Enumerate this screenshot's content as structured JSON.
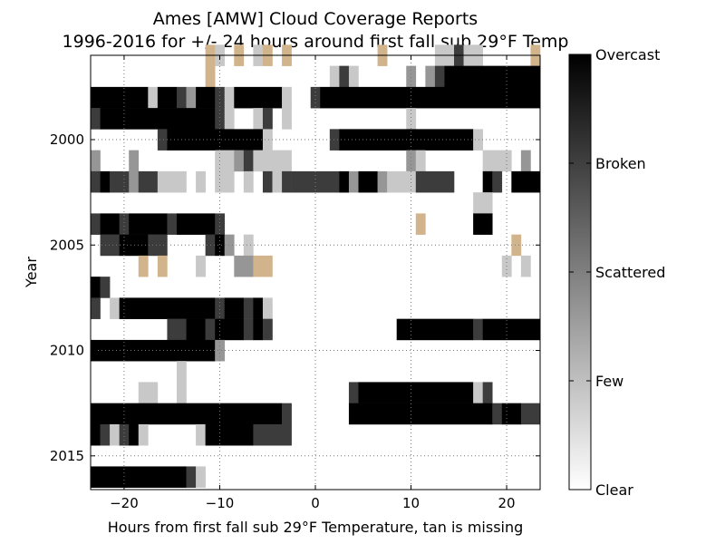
{
  "chart_data": {
    "type": "heatmap",
    "title_line1": "Ames [AMW] Cloud Coverage Reports",
    "title_line2": "1996-2016 for  +/- 24 hours around first fall  sub 29°F Temp",
    "xlabel": "Hours from first fall sub 29°F Temperature, tan is missing",
    "ylabel": "Year",
    "xlim": [
      -23.5,
      23.5
    ],
    "ylim": [
      1996,
      2016.6
    ],
    "x_ticks": [
      -20,
      -10,
      0,
      10,
      20
    ],
    "y_ticks": [
      2000,
      2005,
      2010,
      2015
    ],
    "grid": true,
    "colorbar": {
      "labels": [
        "Clear",
        "Few",
        "Scattered",
        "Broken",
        "Overcast"
      ],
      "values": [
        0,
        1,
        2,
        3,
        4
      ]
    },
    "missing_color": "#D2B48C",
    "level_colors": {
      "0": "#ffffff",
      "1": "#c8c8c8",
      "2": "#969696",
      "3": "#3c3c3c",
      "4": "#000000"
    },
    "rows": [
      {
        "year": 1996,
        "cells": [
          [
            -11,
            -11,
            "M"
          ],
          [
            -10,
            -10,
            1
          ],
          [
            -8,
            -8,
            "M"
          ],
          [
            -6,
            -6,
            1
          ],
          [
            -5,
            -5,
            "M"
          ],
          [
            -3,
            -3,
            "M"
          ],
          [
            7,
            7,
            "M"
          ],
          [
            13,
            14,
            1
          ],
          [
            15,
            15,
            3
          ],
          [
            16,
            17,
            1
          ],
          [
            23,
            23,
            "M"
          ]
        ]
      },
      {
        "year": 1997,
        "cells": [
          [
            -11,
            -11,
            "M"
          ],
          [
            2,
            2,
            1
          ],
          [
            3,
            3,
            3
          ],
          [
            4,
            4,
            1
          ],
          [
            10,
            10,
            2
          ],
          [
            12,
            12,
            2
          ],
          [
            13,
            13,
            3
          ],
          [
            14,
            23,
            4
          ]
        ]
      },
      {
        "year": 1998,
        "cells": [
          [
            -23,
            -18,
            4
          ],
          [
            -17,
            -17,
            1
          ],
          [
            -16,
            -15,
            4
          ],
          [
            -14,
            -14,
            3
          ],
          [
            -13,
            -13,
            2
          ],
          [
            -12,
            -11,
            4
          ],
          [
            -10,
            -10,
            3
          ],
          [
            -9,
            -9,
            1
          ],
          [
            -8,
            -4,
            4
          ],
          [
            -3,
            -3,
            1
          ],
          [
            0,
            0,
            3
          ],
          [
            1,
            23,
            4
          ]
        ]
      },
      {
        "year": 1999,
        "cells": [
          [
            -23,
            -23,
            3
          ],
          [
            -22,
            -11,
            4
          ],
          [
            -10,
            -10,
            3
          ],
          [
            -9,
            -9,
            1
          ],
          [
            -6,
            -6,
            1
          ],
          [
            -5,
            -5,
            3
          ],
          [
            -3,
            -3,
            1
          ],
          [
            10,
            10,
            1
          ]
        ]
      },
      {
        "year": 2000,
        "cells": [
          [
            -16,
            -16,
            3
          ],
          [
            -15,
            -6,
            4
          ],
          [
            -5,
            -5,
            1
          ],
          [
            2,
            2,
            3
          ],
          [
            3,
            16,
            4
          ],
          [
            17,
            17,
            1
          ]
        ]
      },
      {
        "year": 2001,
        "cells": [
          [
            -23,
            -23,
            2
          ],
          [
            -19,
            -19,
            2
          ],
          [
            -10,
            -9,
            1
          ],
          [
            -8,
            -8,
            2
          ],
          [
            -7,
            -7,
            3
          ],
          [
            -6,
            -6,
            1
          ],
          [
            -5,
            -3,
            1
          ],
          [
            10,
            10,
            2
          ],
          [
            11,
            11,
            1
          ],
          [
            18,
            20,
            1
          ],
          [
            22,
            22,
            2
          ]
        ]
      },
      {
        "year": 2002,
        "cells": [
          [
            -23,
            -23,
            3
          ],
          [
            -22,
            -22,
            4
          ],
          [
            -21,
            -20,
            3
          ],
          [
            -19,
            -19,
            2
          ],
          [
            -18,
            -17,
            3
          ],
          [
            -16,
            -14,
            1
          ],
          [
            -12,
            -12,
            1
          ],
          [
            -10,
            -9,
            1
          ],
          [
            -7,
            -7,
            1
          ],
          [
            -5,
            -5,
            3
          ],
          [
            -4,
            -4,
            1
          ],
          [
            -3,
            -3,
            3
          ],
          [
            -2,
            2,
            3
          ],
          [
            3,
            3,
            4
          ],
          [
            4,
            4,
            2
          ],
          [
            5,
            6,
            4
          ],
          [
            7,
            7,
            2
          ],
          [
            8,
            10,
            1
          ],
          [
            11,
            11,
            3
          ],
          [
            12,
            14,
            3
          ],
          [
            18,
            18,
            4
          ],
          [
            19,
            19,
            3
          ],
          [
            21,
            23,
            4
          ]
        ]
      },
      {
        "year": 2003,
        "cells": [
          [
            17,
            18,
            1
          ]
        ]
      },
      {
        "year": 2004,
        "cells": [
          [
            -23,
            -23,
            3
          ],
          [
            -22,
            -21,
            4
          ],
          [
            -20,
            -20,
            3
          ],
          [
            -19,
            -16,
            4
          ],
          [
            -15,
            -15,
            3
          ],
          [
            -14,
            -11,
            4
          ],
          [
            -10,
            -10,
            3
          ],
          [
            11,
            11,
            "M"
          ],
          [
            17,
            18,
            4
          ]
        ]
      },
      {
        "year": 2005,
        "cells": [
          [
            -22,
            -21,
            3
          ],
          [
            -20,
            -20,
            4
          ],
          [
            -19,
            -18,
            4
          ],
          [
            -17,
            -16,
            3
          ],
          [
            -11,
            -11,
            3
          ],
          [
            -10,
            -10,
            4
          ],
          [
            -9,
            -9,
            2
          ],
          [
            -7,
            -7,
            1
          ],
          [
            21,
            21,
            "M"
          ]
        ]
      },
      {
        "year": 2006,
        "cells": [
          [
            -18,
            -18,
            "M"
          ],
          [
            -16,
            -16,
            "M"
          ],
          [
            -12,
            -12,
            1
          ],
          [
            -8,
            -7,
            2
          ],
          [
            -6,
            -5,
            "M"
          ],
          [
            20,
            20,
            1
          ],
          [
            22,
            22,
            1
          ]
        ]
      },
      {
        "year": 2007,
        "cells": [
          [
            -23,
            -23,
            4
          ],
          [
            -22,
            -22,
            3
          ]
        ]
      },
      {
        "year": 2008,
        "cells": [
          [
            -23,
            -23,
            3
          ],
          [
            -21,
            -21,
            1
          ],
          [
            -20,
            -11,
            4
          ],
          [
            -10,
            -10,
            3
          ],
          [
            -9,
            -8,
            4
          ],
          [
            -7,
            -7,
            3
          ],
          [
            -6,
            -6,
            4
          ],
          [
            -5,
            -5,
            1
          ]
        ]
      },
      {
        "year": 2009,
        "cells": [
          [
            -15,
            -14,
            3
          ],
          [
            -13,
            -12,
            4
          ],
          [
            -11,
            -11,
            3
          ],
          [
            -10,
            -8,
            4
          ],
          [
            -7,
            -7,
            3
          ],
          [
            -6,
            -6,
            4
          ],
          [
            -5,
            -5,
            3
          ],
          [
            9,
            16,
            4
          ],
          [
            17,
            17,
            3
          ],
          [
            18,
            23,
            4
          ]
        ]
      },
      {
        "year": 2010,
        "cells": [
          [
            -23,
            -11,
            4
          ],
          [
            -10,
            -10,
            2
          ]
        ]
      },
      {
        "year": 2011,
        "cells": [
          [
            -14,
            -14,
            1
          ]
        ]
      },
      {
        "year": 2012,
        "cells": [
          [
            -18,
            -17,
            1
          ],
          [
            -14,
            -14,
            1
          ],
          [
            4,
            4,
            3
          ],
          [
            5,
            16,
            4
          ],
          [
            17,
            17,
            1
          ],
          [
            18,
            18,
            3
          ]
        ]
      },
      {
        "year": 2013,
        "cells": [
          [
            -23,
            -4,
            4
          ],
          [
            -3,
            -3,
            3
          ],
          [
            4,
            18,
            4
          ],
          [
            19,
            19,
            3
          ],
          [
            20,
            21,
            4
          ],
          [
            22,
            23,
            3
          ]
        ]
      },
      {
        "year": 2014,
        "cells": [
          [
            -23,
            -23,
            4
          ],
          [
            -22,
            -22,
            3
          ],
          [
            -21,
            -21,
            1
          ],
          [
            -20,
            -20,
            3
          ],
          [
            -19,
            -19,
            4
          ],
          [
            -18,
            -18,
            1
          ],
          [
            -12,
            -12,
            1
          ],
          [
            -11,
            -7,
            4
          ],
          [
            -6,
            -3,
            3
          ]
        ]
      },
      {
        "year": 2015,
        "cells": []
      },
      {
        "year": 2016,
        "cells": [
          [
            -23,
            -14,
            4
          ],
          [
            -13,
            -13,
            3
          ],
          [
            -12,
            -12,
            1
          ]
        ]
      }
    ]
  }
}
